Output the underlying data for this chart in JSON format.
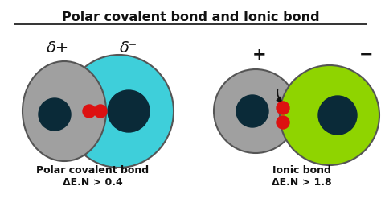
{
  "title": "Polar covalent bond and Ionic bond",
  "background_color": "#ffffff",
  "polar_label": "Polar covalent bond",
  "polar_formula": "ΔE.N > 0.4",
  "ionic_label": "Ionic bond",
  "ionic_formula": "ΔE.N > 1.8",
  "delta_plus": "δ+",
  "delta_minus": "δ⁻",
  "plus_sign": "+",
  "minus_sign": "−",
  "gray_color": "#a0a0a0",
  "cyan_color": "#3ecfda",
  "green_color": "#8fd400",
  "dark_nucleus": "#0a2a38",
  "red_dot": "#dd1111",
  "outline_color": "#555555",
  "text_color": "#111111"
}
